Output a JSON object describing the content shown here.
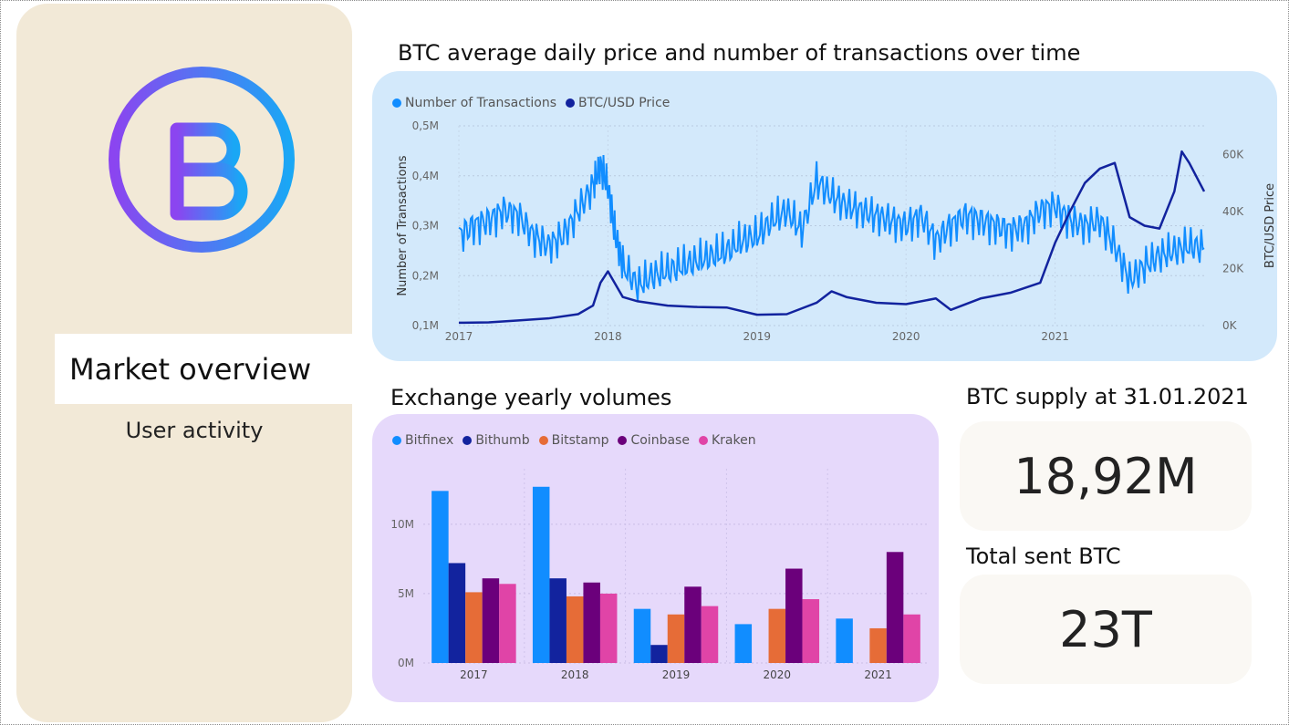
{
  "sidebar": {
    "nav": [
      {
        "label": "Market overview",
        "active": true
      },
      {
        "label": "User activity",
        "active": false
      }
    ],
    "logo_icon": "bitcoin-icon"
  },
  "price_chart": {
    "title": "BTC average daily price and number of transactions over time"
  },
  "volume_chart": {
    "title": "Exchange yearly volumes"
  },
  "kpis": [
    {
      "title": "BTC supply at 31.01.2021",
      "value": "18,92M"
    },
    {
      "title": "Total sent BTC",
      "value": "23T"
    }
  ],
  "chart_data": [
    {
      "type": "line",
      "title": "BTC average daily price and number of transactions over time",
      "x_ticks": [
        "2017",
        "2018",
        "2019",
        "2020",
        "2021"
      ],
      "y_left": {
        "label": "Number of Transactions",
        "ticks": [
          "0,1M",
          "0,2M",
          "0,3M",
          "0,4M",
          "0,5M"
        ],
        "range": [
          100000,
          500000
        ]
      },
      "y_right": {
        "label": "BTC/USD Price",
        "ticks": [
          "0K",
          "20K",
          "40K",
          "60K"
        ],
        "range": [
          0,
          70000
        ]
      },
      "legend": [
        "Number of Transactions",
        "BTC/USD Price"
      ],
      "colors": [
        "#118dff",
        "#12239e"
      ],
      "series": [
        {
          "name": "Number of Transactions",
          "x": [
            2017.0,
            2017.1,
            2017.2,
            2017.3,
            2017.4,
            2017.5,
            2017.6,
            2017.7,
            2017.8,
            2017.9,
            2017.95,
            2018.0,
            2018.05,
            2018.1,
            2018.2,
            2018.3,
            2018.4,
            2018.5,
            2018.6,
            2018.7,
            2018.8,
            2018.9,
            2019.0,
            2019.1,
            2019.2,
            2019.3,
            2019.4,
            2019.5,
            2019.6,
            2019.7,
            2019.8,
            2019.9,
            2020.0,
            2020.1,
            2020.2,
            2020.3,
            2020.4,
            2020.5,
            2020.6,
            2020.7,
            2020.8,
            2020.9,
            2021.0,
            2021.1,
            2021.2,
            2021.3,
            2021.4,
            2021.5,
            2021.6,
            2021.7,
            2021.8,
            2021.9,
            2022.0
          ],
          "values": [
            280000,
            300000,
            310000,
            330000,
            320000,
            280000,
            260000,
            280000,
            330000,
            380000,
            420000,
            380000,
            280000,
            220000,
            180000,
            200000,
            210000,
            220000,
            230000,
            240000,
            250000,
            270000,
            280000,
            310000,
            330000,
            290000,
            390000,
            360000,
            340000,
            330000,
            320000,
            310000,
            300000,
            320000,
            270000,
            300000,
            320000,
            310000,
            300000,
            290000,
            300000,
            330000,
            340000,
            310000,
            300000,
            310000,
            260000,
            190000,
            220000,
            240000,
            250000,
            260000,
            255000
          ]
        },
        {
          "name": "BTC/USD Price",
          "x": [
            2017.0,
            2017.2,
            2017.4,
            2017.6,
            2017.8,
            2017.9,
            2017.95,
            2018.0,
            2018.1,
            2018.2,
            2018.4,
            2018.6,
            2018.8,
            2019.0,
            2019.2,
            2019.4,
            2019.5,
            2019.6,
            2019.8,
            2020.0,
            2020.2,
            2020.3,
            2020.5,
            2020.7,
            2020.9,
            2021.0,
            2021.1,
            2021.2,
            2021.3,
            2021.4,
            2021.5,
            2021.6,
            2021.7,
            2021.8,
            2021.85,
            2021.9,
            2022.0
          ],
          "values": [
            1000,
            1100,
            1800,
            2500,
            4000,
            7000,
            15000,
            19000,
            10000,
            8500,
            7000,
            6500,
            6300,
            3800,
            4000,
            8000,
            12000,
            10000,
            8000,
            7500,
            9500,
            5500,
            9500,
            11500,
            15000,
            29000,
            40000,
            50000,
            55000,
            57000,
            38000,
            35000,
            34000,
            47000,
            61000,
            57000,
            47000
          ]
        }
      ]
    },
    {
      "type": "bar",
      "title": "Exchange yearly volumes",
      "categories": [
        "2017",
        "2018",
        "2019",
        "2020",
        "2021"
      ],
      "y_ticks": [
        "0M",
        "5M",
        "10M"
      ],
      "ylim": [
        0,
        14000000
      ],
      "legend": [
        "Bitfinex",
        "Bithumb",
        "Bitstamp",
        "Coinbase",
        "Kraken"
      ],
      "series": [
        {
          "name": "Bitfinex",
          "color": "#118dff",
          "values": [
            12400000,
            12700000,
            3900000,
            2800000,
            3200000
          ]
        },
        {
          "name": "Bithumb",
          "color": "#12239e",
          "values": [
            7200000,
            6100000,
            1300000,
            0,
            0
          ]
        },
        {
          "name": "Bitstamp",
          "color": "#e66c37",
          "values": [
            5100000,
            4800000,
            3500000,
            3900000,
            2500000
          ]
        },
        {
          "name": "Coinbase",
          "color": "#6b007b",
          "values": [
            6100000,
            5800000,
            5500000,
            6800000,
            8000000
          ]
        },
        {
          "name": "Kraken",
          "color": "#e044a7",
          "values": [
            5700000,
            5000000,
            4100000,
            4600000,
            3500000
          ]
        }
      ]
    }
  ]
}
